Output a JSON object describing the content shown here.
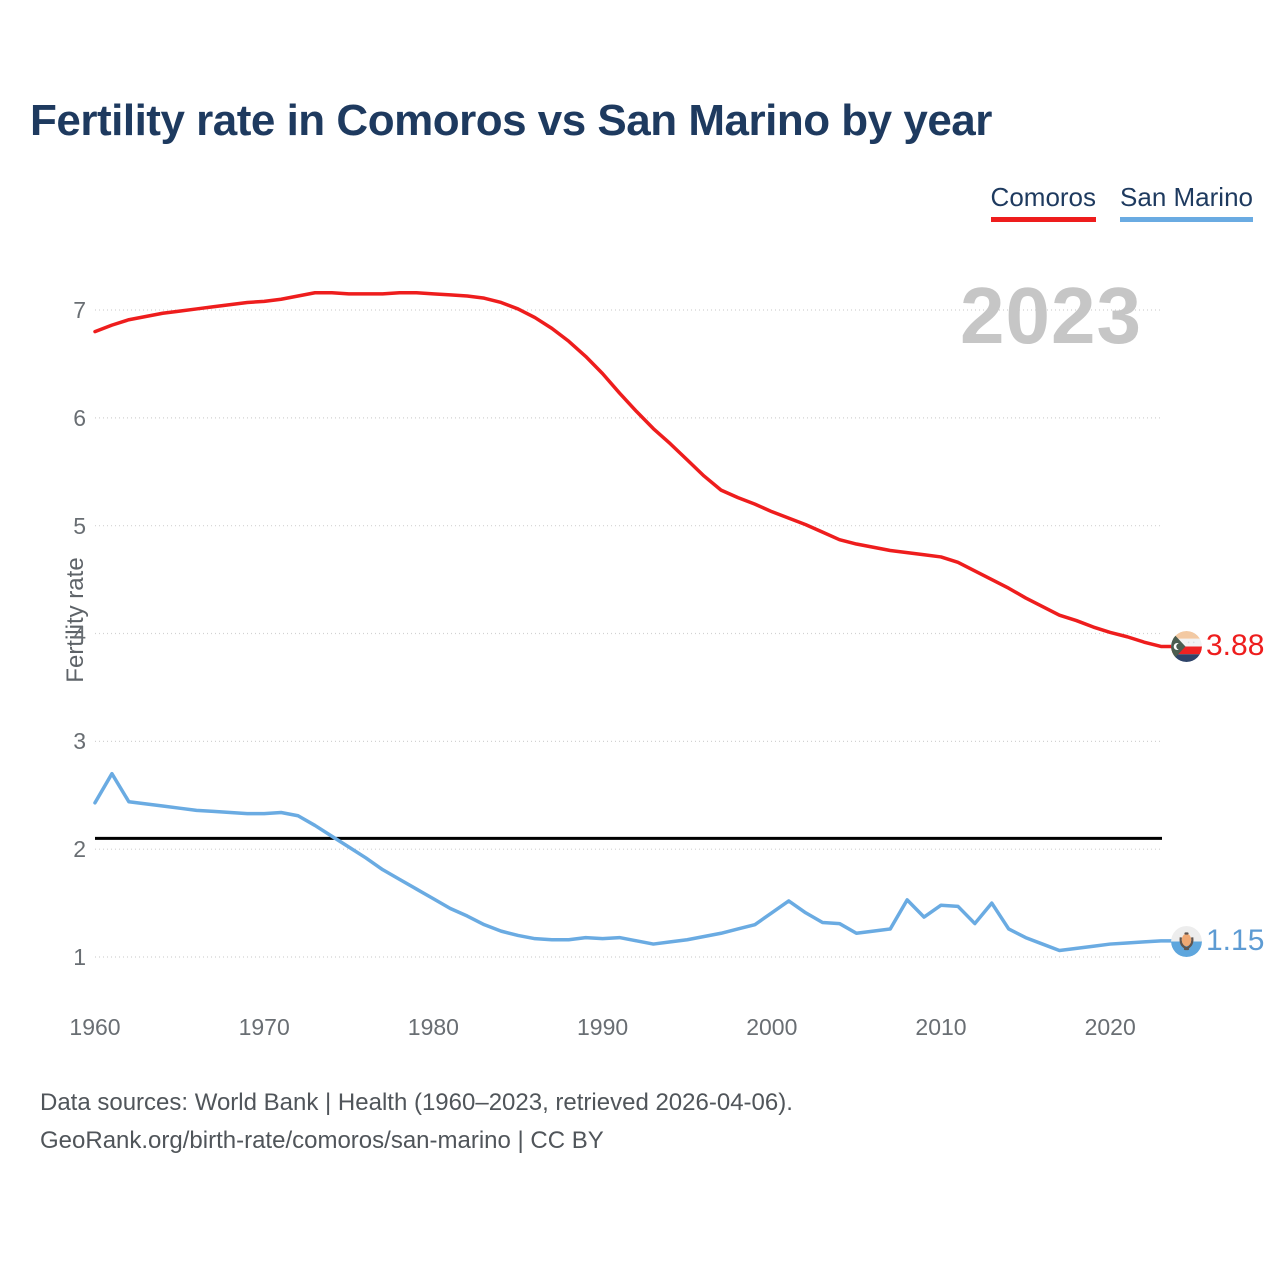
{
  "page": {
    "title": "Fertility rate in Comoros vs San Marino by year",
    "watermark_year": "2023",
    "footer_line1": "Data sources: World Bank | Health (1960–2023, retrieved 2026-04-06).",
    "footer_line2": "GeoRank.org/birth-rate/comoros/san-marino | CC BY"
  },
  "legend": [
    {
      "label": "Comoros",
      "color": "#ee1d1d"
    },
    {
      "label": "San Marino",
      "color": "#6aabe2"
    }
  ],
  "colors": {
    "title": "#1e3a5f",
    "axis_text": "#696e73",
    "gridline": "#d2d2d2",
    "replacement_line": "#000000",
    "watermark": "#c6c6c6",
    "footer_text": "#50555a"
  },
  "chart_data": {
    "type": "line",
    "title": "Fertility rate in Comoros vs San Marino by year",
    "xlabel": "",
    "ylabel": "Fertility rate",
    "x_range": [
      1960,
      2023
    ],
    "ylim": [
      0.75,
      7.45
    ],
    "yticks": [
      1,
      2,
      3,
      4,
      5,
      6,
      7
    ],
    "xticks": [
      1960,
      1970,
      1980,
      1990,
      2000,
      2010,
      2020
    ],
    "grid": "horizontal-dotted",
    "legend_position": "top-right",
    "annotations": [
      {
        "type": "hline",
        "value": 2.1,
        "color": "#000000"
      }
    ],
    "x": [
      1960,
      1961,
      1962,
      1963,
      1964,
      1965,
      1966,
      1967,
      1968,
      1969,
      1970,
      1971,
      1972,
      1973,
      1974,
      1975,
      1976,
      1977,
      1978,
      1979,
      1980,
      1981,
      1982,
      1983,
      1984,
      1985,
      1986,
      1987,
      1988,
      1989,
      1990,
      1991,
      1992,
      1993,
      1994,
      1995,
      1996,
      1997,
      1998,
      1999,
      2000,
      2001,
      2002,
      2003,
      2004,
      2005,
      2006,
      2007,
      2008,
      2009,
      2010,
      2011,
      2012,
      2013,
      2014,
      2015,
      2016,
      2017,
      2018,
      2019,
      2020,
      2021,
      2022,
      2023
    ],
    "series": [
      {
        "name": "Comoros",
        "color": "#ee1d1d",
        "end_label": "3.88",
        "end_year": 2023,
        "values": [
          6.8,
          6.86,
          6.91,
          6.94,
          6.97,
          6.99,
          7.01,
          7.03,
          7.05,
          7.07,
          7.08,
          7.1,
          7.13,
          7.16,
          7.16,
          7.15,
          7.15,
          7.15,
          7.16,
          7.16,
          7.15,
          7.14,
          7.13,
          7.11,
          7.07,
          7.01,
          6.93,
          6.83,
          6.71,
          6.57,
          6.41,
          6.23,
          6.06,
          5.9,
          5.76,
          5.61,
          5.46,
          5.33,
          5.26,
          5.2,
          5.13,
          5.07,
          5.01,
          4.94,
          4.87,
          4.83,
          4.8,
          4.77,
          4.75,
          4.73,
          4.71,
          4.66,
          4.58,
          4.5,
          4.42,
          4.33,
          4.25,
          4.17,
          4.12,
          4.06,
          4.01,
          3.97,
          3.92,
          3.88
        ]
      },
      {
        "name": "San Marino",
        "color": "#6aabe2",
        "end_label": "1.15",
        "end_year": 2023,
        "values": [
          2.43,
          2.7,
          2.44,
          2.42,
          2.4,
          2.38,
          2.36,
          2.35,
          2.34,
          2.33,
          2.33,
          2.34,
          2.31,
          2.22,
          2.12,
          2.02,
          1.92,
          1.81,
          1.72,
          1.63,
          1.54,
          1.45,
          1.38,
          1.3,
          1.24,
          1.2,
          1.17,
          1.16,
          1.16,
          1.18,
          1.17,
          1.18,
          1.15,
          1.12,
          1.14,
          1.16,
          1.19,
          1.22,
          1.26,
          1.3,
          1.41,
          1.52,
          1.41,
          1.32,
          1.31,
          1.22,
          1.24,
          1.26,
          1.53,
          1.37,
          1.48,
          1.47,
          1.31,
          1.5,
          1.26,
          1.18,
          1.12,
          1.06,
          1.08,
          1.1,
          1.12,
          1.13,
          1.14,
          1.15
        ]
      }
    ]
  }
}
